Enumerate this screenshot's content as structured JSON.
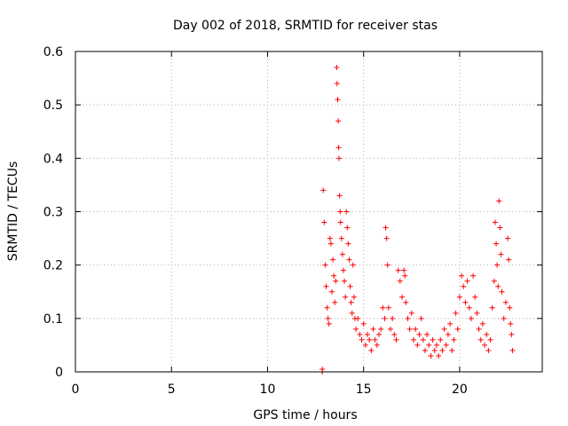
{
  "chart_data": {
    "type": "scatter",
    "title": "Day 002 of 2018, SRMTID for receiver stas",
    "xlabel": "GPS time / hours",
    "ylabel": "SRMTID / TECUs",
    "xlim": [
      0,
      24.3
    ],
    "ylim": [
      0,
      0.6
    ],
    "xticks": [
      0,
      5,
      10,
      15,
      20
    ],
    "yticks": [
      0,
      0.1,
      0.2,
      0.3,
      0.4,
      0.5,
      0.6
    ],
    "xtick_labels": [
      "0",
      "5",
      "10",
      "15",
      "20"
    ],
    "ytick_labels": [
      "0",
      "0.1",
      "0.2",
      "0.3",
      "0.4",
      "0.5",
      "0.6"
    ],
    "grid": true,
    "marker": "+",
    "series": [
      {
        "name": "stas",
        "color": "#ff0000",
        "points": [
          [
            12.85,
            0.0
          ],
          [
            12.85,
            0.005
          ],
          [
            12.9,
            0.34
          ],
          [
            12.95,
            0.28
          ],
          [
            13.0,
            0.2
          ],
          [
            13.05,
            0.16
          ],
          [
            13.1,
            0.12
          ],
          [
            13.15,
            0.1
          ],
          [
            13.2,
            0.09
          ],
          [
            13.25,
            0.25
          ],
          [
            13.3,
            0.24
          ],
          [
            13.35,
            0.15
          ],
          [
            13.4,
            0.21
          ],
          [
            13.45,
            0.18
          ],
          [
            13.5,
            0.13
          ],
          [
            13.55,
            0.17
          ],
          [
            13.6,
            0.57
          ],
          [
            13.62,
            0.54
          ],
          [
            13.65,
            0.51
          ],
          [
            13.68,
            0.47
          ],
          [
            13.7,
            0.42
          ],
          [
            13.72,
            0.4
          ],
          [
            13.75,
            0.33
          ],
          [
            13.78,
            0.3
          ],
          [
            13.8,
            0.28
          ],
          [
            13.85,
            0.25
          ],
          [
            13.9,
            0.22
          ],
          [
            13.95,
            0.19
          ],
          [
            14.0,
            0.17
          ],
          [
            14.05,
            0.14
          ],
          [
            14.1,
            0.3
          ],
          [
            14.15,
            0.27
          ],
          [
            14.2,
            0.24
          ],
          [
            14.25,
            0.21
          ],
          [
            14.3,
            0.16
          ],
          [
            14.35,
            0.13
          ],
          [
            14.4,
            0.11
          ],
          [
            14.45,
            0.2
          ],
          [
            14.5,
            0.14
          ],
          [
            14.55,
            0.1
          ],
          [
            14.6,
            0.08
          ],
          [
            14.7,
            0.1
          ],
          [
            14.8,
            0.07
          ],
          [
            14.9,
            0.06
          ],
          [
            15.0,
            0.09
          ],
          [
            15.1,
            0.05
          ],
          [
            15.2,
            0.07
          ],
          [
            15.3,
            0.06
          ],
          [
            15.4,
            0.04
          ],
          [
            15.5,
            0.08
          ],
          [
            15.6,
            0.06
          ],
          [
            15.7,
            0.05
          ],
          [
            15.8,
            0.07
          ],
          [
            15.9,
            0.08
          ],
          [
            16.0,
            0.12
          ],
          [
            16.1,
            0.1
          ],
          [
            16.15,
            0.27
          ],
          [
            16.2,
            0.25
          ],
          [
            16.25,
            0.2
          ],
          [
            16.3,
            0.12
          ],
          [
            16.4,
            0.08
          ],
          [
            16.5,
            0.1
          ],
          [
            16.6,
            0.07
          ],
          [
            16.7,
            0.06
          ],
          [
            16.8,
            0.19
          ],
          [
            16.9,
            0.17
          ],
          [
            17.0,
            0.14
          ],
          [
            17.1,
            0.19
          ],
          [
            17.15,
            0.18
          ],
          [
            17.2,
            0.13
          ],
          [
            17.3,
            0.1
          ],
          [
            17.4,
            0.08
          ],
          [
            17.5,
            0.11
          ],
          [
            17.6,
            0.06
          ],
          [
            17.7,
            0.08
          ],
          [
            17.8,
            0.05
          ],
          [
            17.9,
            0.07
          ],
          [
            18.0,
            0.1
          ],
          [
            18.1,
            0.06
          ],
          [
            18.2,
            0.04
          ],
          [
            18.3,
            0.07
          ],
          [
            18.4,
            0.05
          ],
          [
            18.5,
            0.03
          ],
          [
            18.6,
            0.06
          ],
          [
            18.7,
            0.04
          ],
          [
            18.8,
            0.05
          ],
          [
            18.9,
            0.03
          ],
          [
            19.0,
            0.06
          ],
          [
            19.1,
            0.04
          ],
          [
            19.2,
            0.08
          ],
          [
            19.3,
            0.05
          ],
          [
            19.4,
            0.07
          ],
          [
            19.5,
            0.09
          ],
          [
            19.6,
            0.04
          ],
          [
            19.7,
            0.06
          ],
          [
            19.8,
            0.11
          ],
          [
            19.9,
            0.08
          ],
          [
            20.0,
            0.14
          ],
          [
            20.1,
            0.18
          ],
          [
            20.2,
            0.16
          ],
          [
            20.3,
            0.13
          ],
          [
            20.4,
            0.17
          ],
          [
            20.5,
            0.12
          ],
          [
            20.6,
            0.1
          ],
          [
            20.7,
            0.18
          ],
          [
            20.8,
            0.14
          ],
          [
            20.9,
            0.11
          ],
          [
            21.0,
            0.08
          ],
          [
            21.1,
            0.06
          ],
          [
            21.2,
            0.09
          ],
          [
            21.3,
            0.05
          ],
          [
            21.4,
            0.07
          ],
          [
            21.5,
            0.04
          ],
          [
            21.6,
            0.06
          ],
          [
            21.7,
            0.12
          ],
          [
            21.8,
            0.17
          ],
          [
            21.85,
            0.28
          ],
          [
            21.9,
            0.24
          ],
          [
            21.95,
            0.2
          ],
          [
            22.0,
            0.16
          ],
          [
            22.05,
            0.32
          ],
          [
            22.1,
            0.27
          ],
          [
            22.15,
            0.22
          ],
          [
            22.2,
            0.15
          ],
          [
            22.3,
            0.1
          ],
          [
            22.4,
            0.13
          ],
          [
            22.5,
            0.25
          ],
          [
            22.55,
            0.21
          ],
          [
            22.6,
            0.12
          ],
          [
            22.65,
            0.09
          ],
          [
            22.7,
            0.07
          ],
          [
            22.75,
            0.04
          ]
        ]
      }
    ]
  }
}
